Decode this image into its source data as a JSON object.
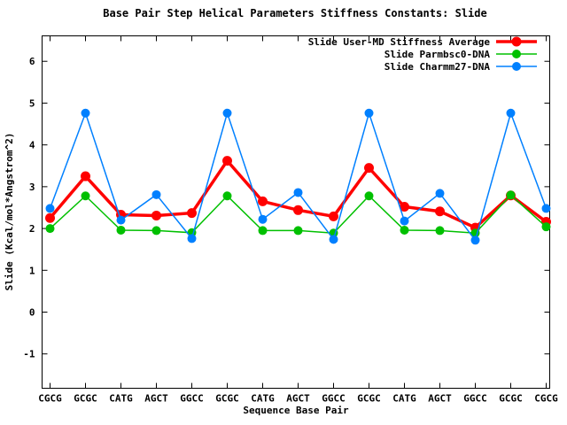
{
  "chart_data": {
    "type": "line",
    "title": "Base Pair Step Helical Parameters Stiffness Constants: Slide",
    "xlabel": "Sequence Base Pair",
    "ylabel": "Slide (Kcal/mol*Angstrom^2)",
    "categories": [
      "CGCG",
      "GCGC",
      "CATG",
      "AGCT",
      "GGCC",
      "GCGC",
      "CATG",
      "AGCT",
      "GGCC",
      "GCGC",
      "CATG",
      "AGCT",
      "GGCC",
      "GCGC",
      "CGCG"
    ],
    "series": [
      {
        "name": "Slide User-MD Stiffness Average",
        "color": "#ff0000",
        "line_width": 3.5,
        "marker": "filled-circle",
        "marker_radius": 5.5,
        "values": [
          2.25,
          3.25,
          2.33,
          2.31,
          2.37,
          3.62,
          2.65,
          2.44,
          2.29,
          3.45,
          2.52,
          2.41,
          2.02,
          2.79,
          2.16
        ]
      },
      {
        "name": "Slide Parmbsc0-DNA",
        "color": "#00c000",
        "line_width": 1.5,
        "marker": "filled-circle",
        "marker_radius": 5,
        "values": [
          2.0,
          2.78,
          1.96,
          1.95,
          1.9,
          2.78,
          1.95,
          1.95,
          1.89,
          2.78,
          1.96,
          1.95,
          1.89,
          2.8,
          2.04
        ]
      },
      {
        "name": "Slide Charmm27-DNA",
        "color": "#0080ff",
        "line_width": 1.5,
        "marker": "filled-circle",
        "marker_radius": 5,
        "values": [
          2.48,
          4.76,
          2.2,
          2.81,
          1.76,
          4.76,
          2.22,
          2.86,
          1.74,
          4.76,
          2.18,
          2.84,
          1.72,
          4.76,
          2.48
        ]
      }
    ],
    "yticks": [
      -1,
      0,
      1,
      2,
      3,
      4,
      5,
      6
    ],
    "ylim": [
      -1.82,
      6.61
    ],
    "grid": false,
    "legend_position": "top-right-inside",
    "background_color": "#ffffff",
    "border_color": "#000000",
    "text_color": "#000000"
  }
}
